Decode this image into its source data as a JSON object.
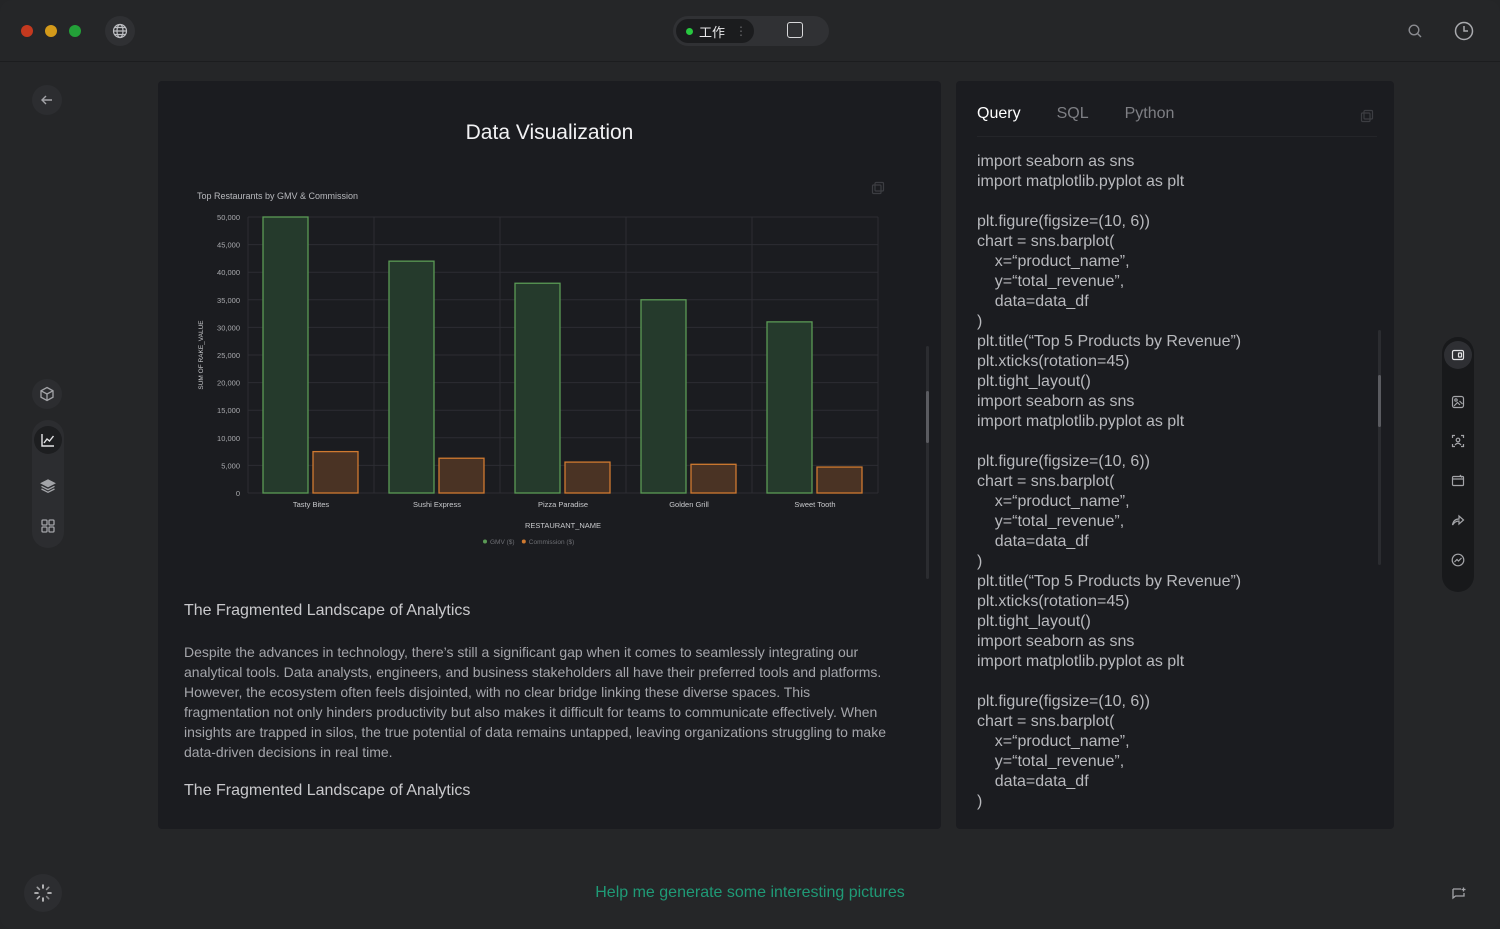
{
  "titlebar": {
    "mode_label": "工作",
    "mode_dot_color": "#28c840",
    "icons": [
      "globe-icon",
      "square-icon",
      "search-icon",
      "clock-icon"
    ]
  },
  "sidebar": {
    "back_icon": "arrow-left-icon",
    "items": [
      {
        "icon": "cube-icon"
      },
      {
        "icon": "line-chart-icon",
        "active": true
      },
      {
        "icon": "layers-icon"
      },
      {
        "icon": "grid-icon"
      }
    ]
  },
  "main": {
    "title": "Data Visualization",
    "section_heading_1": "The Fragmented Landscape of Analytics",
    "paragraph": "Despite the advances in technology, there’s still a significant gap when it comes to seamlessly integrating our analytical tools. Data analysts, engineers, and business stakeholders all have their preferred tools and platforms. However, the ecosystem often feels disjointed, with no clear bridge linking these diverse spaces. This fragmentation not only hinders productivity but also makes it difficult for teams to communicate effectively. When insights are trapped in silos, the true potential of data remains untapped, leaving organizations struggling to make data-driven decisions in real time.",
    "section_heading_2": "The Fragmented Landscape of Analytics"
  },
  "chart_data": {
    "type": "bar",
    "title": "Top Restaurants by GMV & Commission",
    "xlabel": "RESTAURANT_NAME",
    "ylabel": "SUM OF RAKE_VALUE",
    "categories": [
      "Tasty Bites",
      "Sushi Express",
      "Pizza Paradise",
      "Golden Grill",
      "Sweet Tooth"
    ],
    "series": [
      {
        "name": "GMV ($)",
        "values": [
          50000,
          42000,
          38000,
          35000,
          31000
        ],
        "color": "#5a9a55"
      },
      {
        "name": "Commission ($)",
        "values": [
          7500,
          6300,
          5600,
          5200,
          4700
        ],
        "color": "#d07a30"
      }
    ],
    "ylim": [
      0,
      50000
    ],
    "yticks": [
      "0",
      "5,000",
      "10,000",
      "15,000",
      "20,000",
      "25,000",
      "30,000",
      "35,000",
      "40,000",
      "45,000",
      "50,000"
    ],
    "grid": true,
    "legend": "bottom"
  },
  "code_panel": {
    "tabs": [
      "Query",
      "SQL",
      "Python"
    ],
    "active_tab": "Query",
    "code": "import seaborn as sns\nimport matplotlib.pyplot as plt\n\nplt.figure(figsize=(10, 6))\nchart = sns.barplot(\n    x=“product_name”,\n    y=“total_revenue”,\n    data=data_df\n)\nplt.title(“Top 5 Products by Revenue”)\nplt.xticks(rotation=45)\nplt.tight_layout()\nimport seaborn as sns\nimport matplotlib.pyplot as plt\n\nplt.figure(figsize=(10, 6))\nchart = sns.barplot(\n    x=“product_name”,\n    y=“total_revenue”,\n    data=data_df\n)\nplt.title(“Top 5 Products by Revenue”)\nplt.xticks(rotation=45)\nplt.tight_layout()\nimport seaborn as sns\nimport matplotlib.pyplot as plt\n\nplt.figure(figsize=(10, 6))\nchart = sns.barplot(\n    x=“product_name”,\n    y=“total_revenue”,\n    data=data_df\n)"
  },
  "right_toolbar": {
    "items": [
      "panel-icon",
      "image-edit-icon",
      "face-scan-icon",
      "browser-icon",
      "share-icon",
      "trend-icon"
    ]
  },
  "bottom": {
    "prompt_text": "Help me generate some interesting pictures",
    "prompt_color": "#1f9a76"
  }
}
